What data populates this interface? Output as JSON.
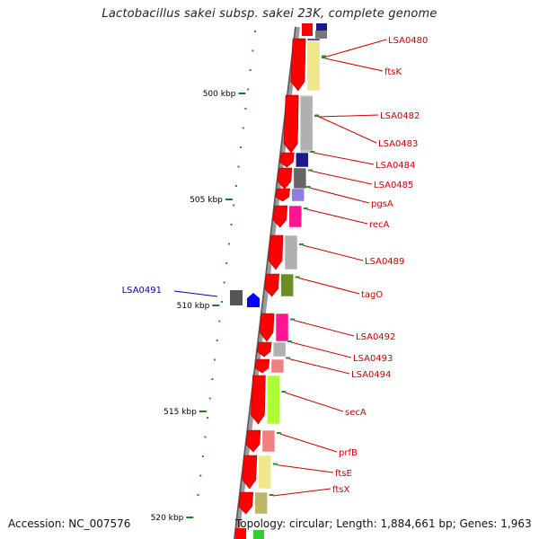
{
  "title": "Lactobacillus sakei subsp. sakei 23K, complete genome",
  "footer": {
    "accession": "Accession: NC_007576",
    "topology": "Topology: circular; Length: 1,884,661 bp; Genes: 1,963"
  },
  "scale_ticks": [
    {
      "label": "500 kbp",
      "kbp": 500
    },
    {
      "label": "505 kbp",
      "kbp": 505
    },
    {
      "label": "510 kbp",
      "kbp": 510
    },
    {
      "label": "515 kbp",
      "kbp": 515
    },
    {
      "label": "520 kbp",
      "kbp": 520
    }
  ],
  "genes": [
    {
      "label": "LSA0480",
      "color": "#1a1a8a",
      "strand": "+",
      "label_color": "#cc0000"
    },
    {
      "label": "ftsK",
      "color": "#f0e68c",
      "strand": "+",
      "label_color": "#cc0000"
    },
    {
      "label": "LSA0482",
      "color": "#b0b0b0",
      "strand": "+",
      "label_color": "#cc0000"
    },
    {
      "label": "LSA0483",
      "color": "#b0b0b0",
      "strand": "+",
      "label_color": "#cc0000"
    },
    {
      "label": "LSA0484",
      "color": "#1a1a8a",
      "strand": "+",
      "label_color": "#cc0000"
    },
    {
      "label": "LSA0485",
      "color": "#666666",
      "strand": "+",
      "label_color": "#cc0000"
    },
    {
      "label": "pgsA",
      "color": "#8c7ee0",
      "strand": "+",
      "label_color": "#cc0000"
    },
    {
      "label": "recA",
      "color": "#ff1493",
      "strand": "+",
      "label_color": "#cc0000"
    },
    {
      "label": "LSA0489",
      "color": "#b0b0b0",
      "strand": "+",
      "label_color": "#cc0000"
    },
    {
      "label": "tagO",
      "color": "#6b8e23",
      "strand": "+",
      "label_color": "#cc0000"
    },
    {
      "label": "LSA0491",
      "color": "#555555",
      "strand": "-",
      "label_color": "#0000cc"
    },
    {
      "label": "LSA0492",
      "color": "#ff1493",
      "strand": "+",
      "label_color": "#cc0000"
    },
    {
      "label": "LSA0493",
      "color": "#b0b0b0",
      "strand": "+",
      "label_color": "#cc0000"
    },
    {
      "label": "LSA0494",
      "color": "#f08080",
      "strand": "+",
      "label_color": "#cc0000"
    },
    {
      "label": "secA",
      "color": "#adff2f",
      "strand": "+",
      "label_color": "#cc0000"
    },
    {
      "label": "prfB",
      "color": "#f08080",
      "strand": "+",
      "label_color": "#cc0000"
    },
    {
      "label": "ftsE",
      "color": "#f0e68c",
      "strand": "+",
      "label_color": "#cc0000"
    },
    {
      "label": "ftsX",
      "color": "#bdb76b",
      "strand": "+",
      "label_color": "#cc0000"
    }
  ]
}
